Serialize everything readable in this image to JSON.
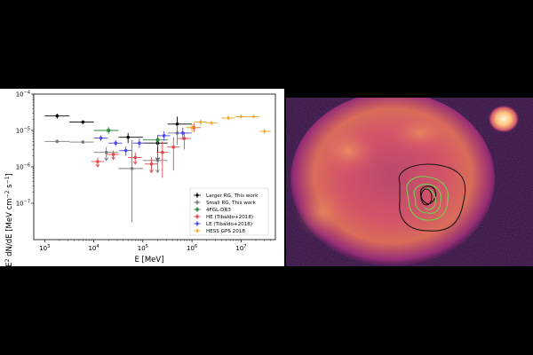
{
  "chart_data": {
    "type": "scatter",
    "xlabel": "E [MeV]",
    "ylabel_main": "E",
    "ylabel_sup": "2",
    "ylabel_rest": " dN/dE [MeV cm",
    "ylabel_sup2": "−2",
    "ylabel_rest2": " s",
    "ylabel_sup3": "−1",
    "ylabel_end": "]",
    "x_scale": "log",
    "y_scale": "log",
    "xlim": [
      600,
      50000000
    ],
    "ylim": [
      1e-08,
      0.0001
    ],
    "x_ticks": [
      {
        "base": "10",
        "exp": "3",
        "value": 1000
      },
      {
        "base": "10",
        "exp": "4",
        "value": 10000
      },
      {
        "base": "10",
        "exp": "5",
        "value": 100000
      },
      {
        "base": "10",
        "exp": "6",
        "value": 1000000
      },
      {
        "base": "10",
        "exp": "7",
        "value": 10000000
      }
    ],
    "y_ticks": [
      {
        "base": "10",
        "exp": "−7",
        "value": 1e-07
      },
      {
        "base": "10",
        "exp": "−6",
        "value": 1e-06
      },
      {
        "base": "10",
        "exp": "−5",
        "value": 1e-05
      },
      {
        "base": "10",
        "exp": "−4",
        "value": 0.0001
      }
    ],
    "legend_position": "lower-right",
    "series": [
      {
        "name": "Larger RG, This work",
        "color": "#000000",
        "marker": "circle",
        "points": [
          {
            "x": 1800,
            "y": 2.5e-05,
            "xlo": 1000,
            "xhi": 3200,
            "ylo": 2.1e-05,
            "yhi": 2.9e-05
          },
          {
            "x": 6000,
            "y": 1.7e-05,
            "xlo": 3200,
            "xhi": 10000,
            "ylo": 1.5e-05,
            "yhi": 1.9e-05
          },
          {
            "x": 50000,
            "y": 6.5e-06,
            "xlo": 32000,
            "xhi": 100000,
            "ylo": 4.5e-06,
            "yhi": 8.5e-06
          },
          {
            "x": 200000,
            "y": 4.5e-06,
            "xlo": 100000,
            "xhi": 320000,
            "ylo": 1.5e-06,
            "yhi": 7.5e-06,
            "upper": true
          },
          {
            "x": 500000,
            "y": 1.5e-05,
            "xlo": 320000,
            "xhi": 1000000,
            "ylo": 8e-06,
            "yhi": 2.4e-05
          }
        ]
      },
      {
        "name": "Small RG, This work",
        "color": "#7a7a7a",
        "marker": "circle",
        "points": [
          {
            "x": 1800,
            "y": 5e-06,
            "xlo": 1000,
            "xhi": 3200,
            "ylo": 4.5e-06,
            "yhi": 5.6e-06
          },
          {
            "x": 6000,
            "y": 4.8e-06,
            "xlo": 3200,
            "xhi": 10000,
            "ylo": 4.3e-06,
            "yhi": 5.4e-06
          },
          {
            "x": 18000,
            "y": 2.5e-06,
            "xlo": 10000,
            "xhi": 32000,
            "ylo": 1.5e-06,
            "yhi": 3.5e-06,
            "upper": true
          },
          {
            "x": 60000,
            "y": 9e-07,
            "xlo": 32000,
            "xhi": 100000,
            "ylo": 3e-08,
            "yhi": 5.5e-06
          },
          {
            "x": 200000,
            "y": 1.5e-06,
            "xlo": 100000,
            "xhi": 320000,
            "ylo": 7e-07,
            "yhi": 2.5e-06,
            "upper": true
          },
          {
            "x": 500000,
            "y": 8.5e-06,
            "xlo": 320000,
            "xhi": 1000000,
            "ylo": 4e-06,
            "yhi": 1.4e-05
          }
        ]
      },
      {
        "name": "4FGL-DR3",
        "color": "#2e8b3a",
        "marker": "square",
        "points": [
          {
            "x": 20000,
            "y": 1e-05,
            "xlo": 10000,
            "xhi": 32000,
            "ylo": 8e-06,
            "yhi": 1.25e-05
          },
          {
            "x": 200000,
            "y": 5.5e-06,
            "xlo": 100000,
            "xhi": 320000,
            "ylo": 3.5e-06,
            "yhi": 7.5e-06
          }
        ]
      },
      {
        "name": "HE (Tibaldo+2018)",
        "color": "#e24a4a",
        "marker": "circle",
        "points": [
          {
            "x": 12000,
            "y": 1.4e-06,
            "xlo": 9000,
            "xhi": 16000,
            "ylo": 1e-06,
            "yhi": 1.8e-06,
            "upper": true
          },
          {
            "x": 25000,
            "y": 2.2e-06,
            "xlo": 18000,
            "xhi": 33000,
            "ylo": 1.6e-06,
            "yhi": 2.8e-06,
            "upper": true
          },
          {
            "x": 70000,
            "y": 1.8e-06,
            "xlo": 50000,
            "xhi": 95000,
            "ylo": 1.2e-06,
            "yhi": 2.5e-06,
            "upper": true
          },
          {
            "x": 150000,
            "y": 1.2e-06,
            "xlo": 110000,
            "xhi": 200000,
            "ylo": 7e-07,
            "yhi": 1.8e-06,
            "upper": true
          },
          {
            "x": 250000,
            "y": 2.5e-06,
            "xlo": 190000,
            "xhi": 330000,
            "ylo": 5e-07,
            "yhi": 5e-06
          },
          {
            "x": 420000,
            "y": 3.5e-06,
            "xlo": 310000,
            "xhi": 560000,
            "ylo": 8e-07,
            "yhi": 6.5e-06
          },
          {
            "x": 700000,
            "y": 6e-06,
            "xlo": 520000,
            "xhi": 950000,
            "ylo": 3e-06,
            "yhi": 9e-06
          },
          {
            "x": 1100000,
            "y": 1.2e-05,
            "xlo": 820000,
            "xhi": 1500000,
            "ylo": 9e-06,
            "yhi": 1.6e-05
          }
        ]
      },
      {
        "name": "LE (Tibaldo+2018)",
        "color": "#4a4ae8",
        "marker": "circle",
        "points": [
          {
            "x": 14000,
            "y": 6.2e-06,
            "xlo": 10000,
            "xhi": 19000,
            "ylo": 5.2e-06,
            "yhi": 7.4e-06
          },
          {
            "x": 28000,
            "y": 4.5e-06,
            "xlo": 20000,
            "xhi": 38000,
            "ylo": 3.7e-06,
            "yhi": 5.4e-06
          },
          {
            "x": 45000,
            "y": 2.8e-06,
            "xlo": 33000,
            "xhi": 60000,
            "ylo": 2e-06,
            "yhi": 3.6e-06
          },
          {
            "x": 85000,
            "y": 4.5e-06,
            "xlo": 62000,
            "xhi": 115000,
            "ylo": 3.3e-06,
            "yhi": 6e-06
          },
          {
            "x": 270000,
            "y": 7.2e-06,
            "xlo": 200000,
            "xhi": 360000,
            "ylo": 5.2e-06,
            "yhi": 9.5e-06
          },
          {
            "x": 650000,
            "y": 8.5e-06,
            "xlo": 480000,
            "xhi": 880000,
            "ylo": 5.5e-06,
            "yhi": 1.2e-05
          }
        ]
      },
      {
        "name": "HESS GPS 2018",
        "color": "#f5a623",
        "marker": "diamond",
        "points": [
          {
            "x": 1000000,
            "y": 1.2e-05,
            "xlo": 750000,
            "xhi": 1350000,
            "ylo": 9e-06,
            "yhi": 1.5e-05
          },
          {
            "x": 1500000,
            "y": 1.7e-05,
            "xlo": 1100000,
            "xhi": 2000000,
            "ylo": 1.4e-05,
            "yhi": 2e-05
          },
          {
            "x": 2500000,
            "y": 1.6e-05,
            "xlo": 1900000,
            "xhi": 3300000,
            "ylo": 1.4e-05,
            "yhi": 1.8e-05
          },
          {
            "x": 5500000,
            "y": 2.2e-05,
            "xlo": 4000000,
            "xhi": 7500000,
            "ylo": 2e-05,
            "yhi": 2.5e-05
          },
          {
            "x": 10000000,
            "y": 2.4e-05,
            "xlo": 7500000,
            "xhi": 13500000,
            "ylo": 2.2e-05,
            "yhi": 2.6e-05
          },
          {
            "x": 18000000,
            "y": 2.4e-05,
            "xlo": 13500000,
            "xhi": 24000000,
            "ylo": 2.2e-05,
            "yhi": 2.6e-05
          },
          {
            "x": 30000000,
            "y": 9.5e-06,
            "xlo": 24000000,
            "xhi": 40000000,
            "ylo": 8e-06,
            "yhi": 1.1e-05
          }
        ]
      }
    ]
  },
  "colors": {
    "map_low": "#1a0a24",
    "map_mid": "#8c2b7a",
    "map_high": "#f07a4a",
    "map_peak": "#fff3d8",
    "contour_black": "#111111",
    "contour_green": "#6fd34a"
  }
}
